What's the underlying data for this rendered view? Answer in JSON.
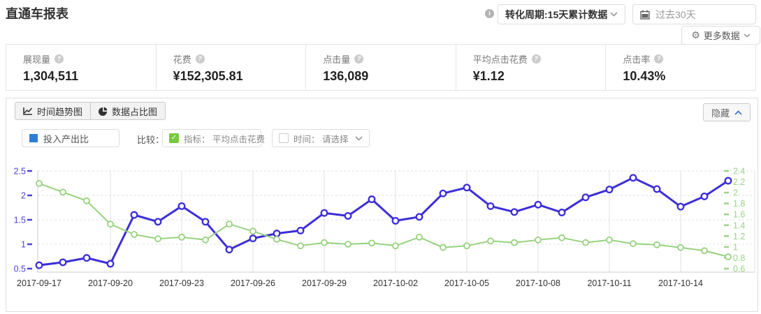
{
  "header": {
    "title": "直通车报表",
    "conversion_cycle_select": "转化周期:15天累计数据",
    "date_range": "过去30天",
    "more_data_label": "更多数据"
  },
  "metrics": [
    {
      "label": "展现量",
      "value": "1,304,511"
    },
    {
      "label": "花费",
      "value": "¥152,305.81"
    },
    {
      "label": "点击量",
      "value": "136,089"
    },
    {
      "label": "平均点击花费",
      "value": "¥1.12"
    },
    {
      "label": "点击率",
      "value": "10.43%"
    }
  ],
  "chart_panel": {
    "tabs": [
      {
        "label": "时间趋势图"
      },
      {
        "label": "数据占比图"
      }
    ],
    "hide_button_label": "隐藏",
    "legend": {
      "series_label": "投入产出比",
      "compare_label": "比较：",
      "metric_checkbox_label": "指标： 平均点击花费",
      "time_checkbox_label": "时间： 请选择"
    },
    "colors": {
      "series_swatch": "#2e7fd6",
      "checkbox_checked": "#76cb3e",
      "hide_chevron": "#3a78c9"
    }
  },
  "chart_data": {
    "type": "line",
    "title": "",
    "x": [
      "2017-09-17",
      "2017-09-18",
      "2017-09-19",
      "2017-09-20",
      "2017-09-21",
      "2017-09-22",
      "2017-09-23",
      "2017-09-24",
      "2017-09-25",
      "2017-09-26",
      "2017-09-27",
      "2017-09-28",
      "2017-09-29",
      "2017-09-30",
      "2017-10-01",
      "2017-10-02",
      "2017-10-03",
      "2017-10-04",
      "2017-10-05",
      "2017-10-06",
      "2017-10-07",
      "2017-10-08",
      "2017-10-09",
      "2017-10-10",
      "2017-10-11",
      "2017-10-12",
      "2017-10-13",
      "2017-10-14",
      "2017-10-15",
      "2017-10-16"
    ],
    "x_tick_interval": 3,
    "series": [
      {
        "id": "roi",
        "name": "投入产出比",
        "axis": "left",
        "color": "#3b2ed8",
        "values": [
          0.57,
          0.63,
          0.72,
          0.6,
          1.6,
          1.46,
          1.78,
          1.46,
          0.89,
          1.12,
          1.22,
          1.28,
          1.64,
          1.58,
          1.92,
          1.48,
          1.56,
          2.04,
          2.16,
          1.78,
          1.66,
          1.81,
          1.65,
          1.96,
          2.12,
          2.36,
          2.13,
          1.77,
          1.98,
          2.3
        ]
      },
      {
        "id": "avg_cost",
        "name": "平均点击花费",
        "axis": "right",
        "color": "#97d27e",
        "values": [
          2.17,
          2.01,
          1.85,
          1.42,
          1.23,
          1.15,
          1.18,
          1.13,
          1.42,
          1.29,
          1.14,
          1.02,
          1.08,
          1.05,
          1.07,
          1.02,
          1.18,
          0.99,
          1.02,
          1.11,
          1.08,
          1.13,
          1.17,
          1.08,
          1.13,
          1.06,
          1.04,
          0.99,
          0.93,
          0.82
        ]
      }
    ],
    "left_axis": {
      "min": 0.5,
      "max": 2.5,
      "ticks": [
        0.5,
        1,
        1.5,
        2,
        2.5
      ],
      "label_color": "#4b42dd"
    },
    "right_axis": {
      "min": 0.6,
      "max": 2.4,
      "ticks": [
        0.6,
        0.8,
        1,
        1.2,
        1.4,
        1.6,
        1.8,
        2,
        2.2,
        2.4
      ],
      "label_color": "#9bd486"
    },
    "grid": true,
    "legend_position": "top-left-external"
  }
}
